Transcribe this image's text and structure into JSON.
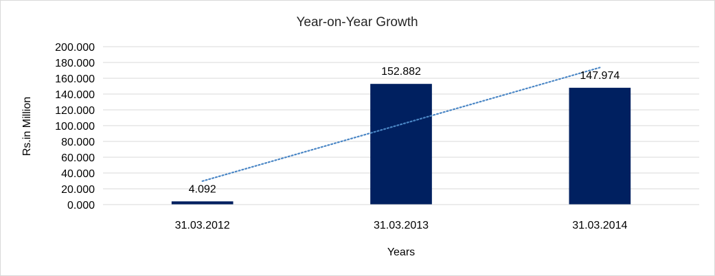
{
  "chart_data": {
    "type": "bar",
    "title": "Year-on-Year Growth",
    "xlabel": "Years",
    "ylabel": "Rs.in Million",
    "categories": [
      "31.03.2012",
      "31.03.2013",
      "31.03.2014"
    ],
    "values": [
      4.092,
      152.882,
      147.974
    ],
    "data_labels": [
      "4.092",
      "152.882",
      "147.974"
    ],
    "y_ticks": [
      "0.000",
      "20.000",
      "40.000",
      "60.000",
      "80.000",
      "100.000",
      "120.000",
      "140.000",
      "160.000",
      "180.000",
      "200.000"
    ],
    "ylim": [
      0,
      200
    ],
    "grid": true,
    "legend": "none",
    "bar_color": "#002060",
    "trendline": {
      "type": "linear",
      "style": "dotted",
      "color": "#4a86c5"
    }
  }
}
